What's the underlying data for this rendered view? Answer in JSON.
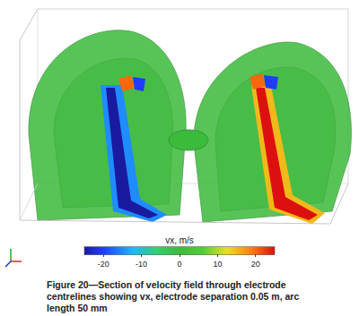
{
  "chart_data": {
    "type": "field_section",
    "caption": "Figure 20—Section of velocity field through electrode centrelines showing vx, electrode separation 0.05 m, arc length 50 mm",
    "colorbar": {
      "title": "vx, m/s",
      "range": [
        -25,
        25
      ],
      "ticks": [
        -20,
        -10,
        0,
        10,
        20
      ]
    },
    "vx_shown": [
      0,
      -15,
      -25,
      15,
      25,
      -20,
      20
    ]
  }
}
